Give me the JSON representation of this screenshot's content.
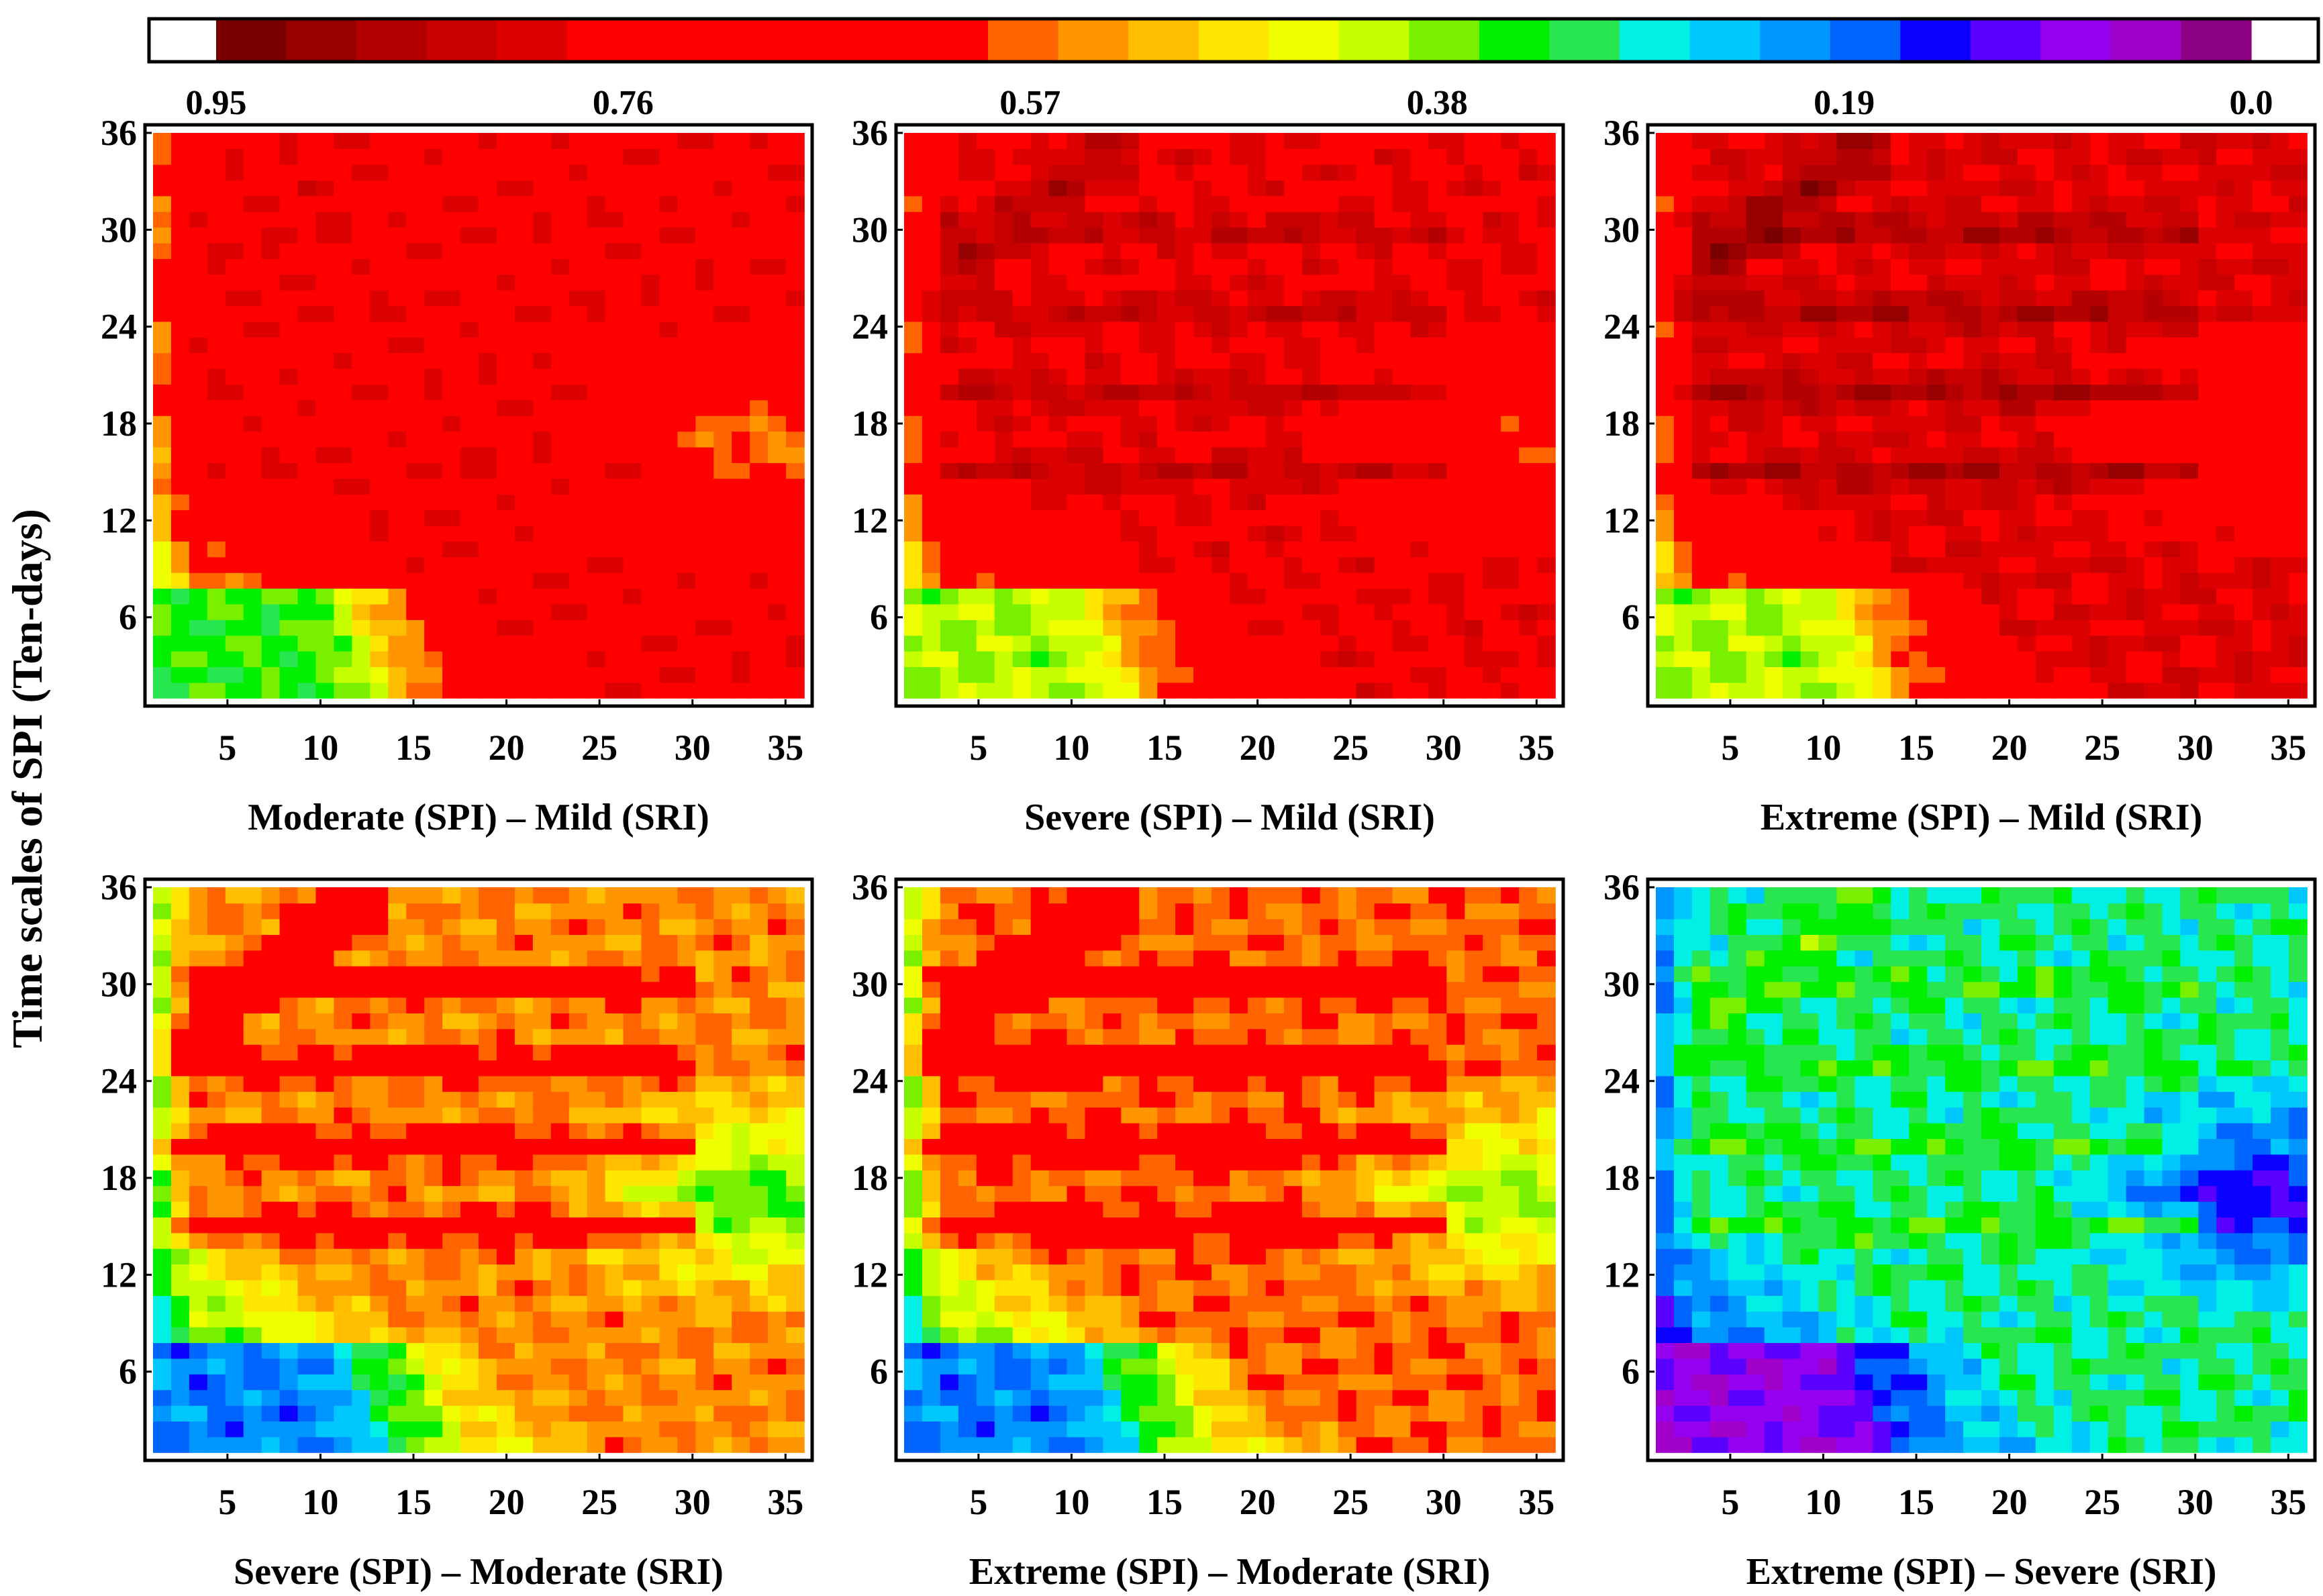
{
  "figure": {
    "ylabel": "Time scales of SPI (Ten-days)"
  },
  "colorbar": {
    "tick_labels": [
      "0.95",
      "0.76",
      "0.57",
      "0.38",
      "0.19",
      "0.0"
    ],
    "tick_values": [
      0.95,
      0.76,
      0.57,
      0.38,
      0.19,
      0.0
    ],
    "range": [
      0.0,
      0.95
    ],
    "colors": [
      "#7a0000",
      "#960000",
      "#b40000",
      "#c80000",
      "#dc0000",
      "#ff0000",
      "#ff0000",
      "#ff0000",
      "#ff0000",
      "#ff0000",
      "#ff0000",
      "#ff6400",
      "#ff9600",
      "#ffbe00",
      "#ffe600",
      "#f0ff00",
      "#c8ff00",
      "#78f000",
      "#00f000",
      "#28e650",
      "#00f0e6",
      "#00c8ff",
      "#0096ff",
      "#0064ff",
      "#0a00ff",
      "#5a00ff",
      "#9600f0",
      "#a000c8",
      "#8c0082"
    ]
  },
  "chart_data": [
    {
      "type": "heatmap",
      "title": "Moderate (SPI) – Mild (SRI)",
      "xlabel": "Moderate (SPI) – Mild (SRI)",
      "ylabel": "Time scales of SPI (Ten-days)",
      "xlim": [
        1,
        36
      ],
      "ylim": [
        1,
        36
      ],
      "xticks": [
        5,
        10,
        15,
        20,
        25,
        30,
        35
      ],
      "yticks": [
        6,
        12,
        18,
        24,
        30,
        36
      ],
      "z_range": [
        0.0,
        0.95
      ],
      "approx_pattern": {
        "base": 0.76,
        "low_corner": 0.35,
        "right_mid": 0.55,
        "dark_band": 0.78
      }
    },
    {
      "type": "heatmap",
      "title": "Severe (SPI) – Mild (SRI)",
      "xlabel": "Severe (SPI) – Mild (SRI)",
      "ylabel": "Time scales of SPI (Ten-days)",
      "xlim": [
        1,
        36
      ],
      "ylim": [
        1,
        36
      ],
      "xticks": [
        5,
        10,
        15,
        20,
        25,
        30,
        35
      ],
      "yticks": [
        6,
        12,
        18,
        24,
        30,
        36
      ],
      "z_range": [
        0.0,
        0.95
      ],
      "approx_pattern": {
        "base": 0.78,
        "low_corner": 0.4,
        "right_mid": 0.6,
        "dark_band": 0.86
      }
    },
    {
      "type": "heatmap",
      "title": "Extreme (SPI) – Mild (SRI)",
      "xlabel": "Extreme (SPI) – Mild (SRI)",
      "ylabel": "Time scales of SPI (Ten-days)",
      "xlim": [
        1,
        36
      ],
      "ylim": [
        1,
        36
      ],
      "xticks": [
        5,
        10,
        15,
        20,
        25,
        30,
        35
      ],
      "yticks": [
        6,
        12,
        18,
        24,
        30,
        36
      ],
      "z_range": [
        0.0,
        0.95
      ],
      "approx_pattern": {
        "base": 0.8,
        "low_corner": 0.4,
        "right_mid": 0.62,
        "dark_band": 0.9
      }
    },
    {
      "type": "heatmap",
      "title": "Severe (SPI) – Moderate (SRI)",
      "xlabel": "Severe (SPI) – Moderate (SRI)",
      "ylabel": "Time scales of SPI (Ten-days)",
      "xlim": [
        1,
        36
      ],
      "ylim": [
        1,
        36
      ],
      "xticks": [
        5,
        10,
        15,
        20,
        25,
        30,
        35
      ],
      "yticks": [
        6,
        12,
        18,
        24,
        30,
        36
      ],
      "z_range": [
        0.0,
        0.95
      ],
      "approx_pattern": {
        "base": 0.55,
        "low_corner": 0.2,
        "right_mid": 0.35,
        "dark_band": 0.72
      }
    },
    {
      "type": "heatmap",
      "title": "Extreme (SPI) – Moderate (SRI)",
      "xlabel": "Extreme (SPI) – Moderate (SRI)",
      "ylabel": "Time scales of SPI (Ten-days)",
      "xlim": [
        1,
        36
      ],
      "ylim": [
        1,
        36
      ],
      "xticks": [
        5,
        10,
        15,
        20,
        25,
        30,
        35
      ],
      "yticks": [
        6,
        12,
        18,
        24,
        30,
        36
      ],
      "z_range": [
        0.0,
        0.95
      ],
      "approx_pattern": {
        "base": 0.57,
        "low_corner": 0.2,
        "right_mid": 0.38,
        "dark_band": 0.74
      }
    },
    {
      "type": "heatmap",
      "title": "Extreme (SPI) – Severe (SRI)",
      "xlabel": "Extreme (SPI) – Severe (SRI)",
      "ylabel": "Time scales of SPI (Ten-days)",
      "xlim": [
        1,
        36
      ],
      "ylim": [
        1,
        36
      ],
      "xticks": [
        5,
        10,
        15,
        20,
        25,
        30,
        35
      ],
      "yticks": [
        6,
        12,
        18,
        24,
        30,
        36
      ],
      "z_range": [
        0.0,
        0.95
      ],
      "approx_pattern": {
        "base": 0.3,
        "low_corner": 0.08,
        "right_mid": 0.12,
        "dark_band": 0.36
      }
    }
  ]
}
